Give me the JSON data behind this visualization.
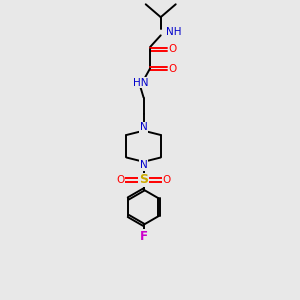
{
  "bg_color": "#e8e8e8",
  "atom_colors": {
    "C": "#000000",
    "N": "#0000cc",
    "O": "#ff0000",
    "S": "#ccaa00",
    "F": "#cc00cc",
    "H": "#555555"
  },
  "bond_color": "#000000",
  "figsize": [
    3.0,
    3.0
  ],
  "dpi": 100,
  "lw": 1.4,
  "fs": 7.5
}
